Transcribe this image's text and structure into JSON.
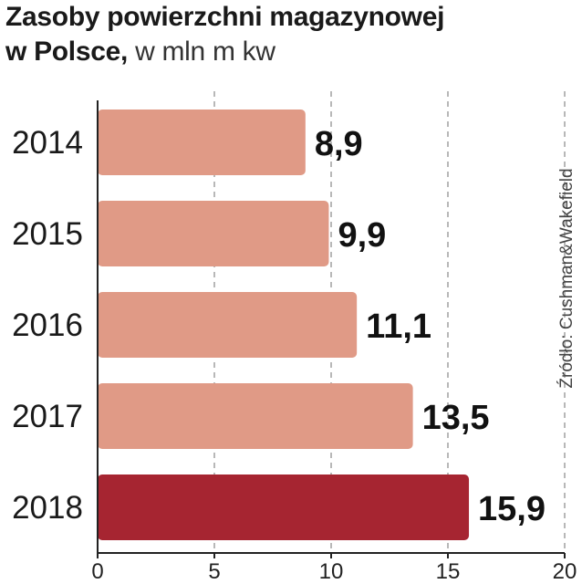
{
  "header": {
    "title_line1": "Zasoby powierzchni magazynowej",
    "title_line2_bold": "w Polsce,",
    "title_line2_unit": " w mln m kw"
  },
  "source": "Źródło: Cushman&Wakefield",
  "chart_data": {
    "type": "bar",
    "orientation": "horizontal",
    "title": "Zasoby powierzchni magazynowej w Polsce, w mln m kw",
    "categories": [
      "2014",
      "2015",
      "2016",
      "2017",
      "2018"
    ],
    "values": [
      8.9,
      9.9,
      11.1,
      13.5,
      15.9
    ],
    "value_labels": [
      "8,9",
      "9,9",
      "11,1",
      "13,5",
      "15,9"
    ],
    "xlim": [
      0,
      20
    ],
    "x_ticks": [
      0,
      5,
      10,
      15,
      20
    ],
    "grid": "vertical dashed",
    "legend": "none",
    "colors": {
      "bar": "#e09a86",
      "highlight": "#a62531",
      "highlight_category": "2018",
      "grid": "#888888",
      "axis": "#222222"
    }
  }
}
